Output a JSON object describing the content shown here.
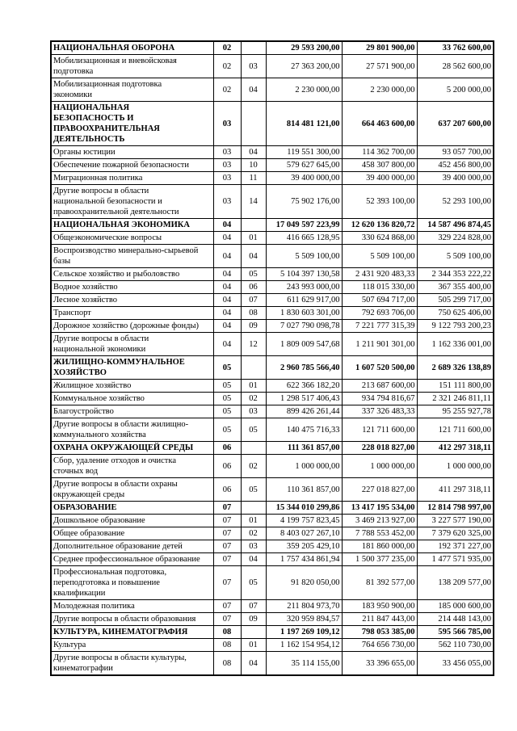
{
  "colors": {
    "page_background": "#ffffff",
    "table_border": "#000000",
    "text": "#000000"
  },
  "table": {
    "rows": [
      {
        "bold": true,
        "name": "НАЦИОНАЛЬНАЯ ОБОРОНА",
        "code1": "02",
        "code2": "",
        "amounts": [
          "29 593 200,00",
          "29 801 900,00",
          "33 762 600,00"
        ]
      },
      {
        "bold": false,
        "name": "Мобилизационная и вневойсковая\nподготовка",
        "code1": "02",
        "code2": "03",
        "amounts": [
          "27 363 200,00",
          "27 571 900,00",
          "28 562 600,00"
        ]
      },
      {
        "bold": false,
        "name": "Мобилизационная подготовка\nэкономики",
        "code1": "02",
        "code2": "04",
        "amounts": [
          "2 230 000,00",
          "2 230 000,00",
          "5 200 000,00"
        ]
      },
      {
        "bold": true,
        "name": "НАЦИОНАЛЬНАЯ\nБЕЗОПАСНОСТЬ И\nПРАВООХРАНИТЕЛЬНАЯ\nДЕЯТЕЛЬНОСТЬ",
        "code1": "03",
        "code2": "",
        "amounts": [
          "814 481 121,00",
          "664 463 600,00",
          "637 207 600,00"
        ]
      },
      {
        "bold": false,
        "name": "Органы юстиции",
        "code1": "03",
        "code2": "04",
        "amounts": [
          "119 551 300,00",
          "114 362 700,00",
          "93 057 700,00"
        ]
      },
      {
        "bold": false,
        "name": "Обеспечение пожарной безопасности",
        "code1": "03",
        "code2": "10",
        "amounts": [
          "579 627 645,00",
          "458 307 800,00",
          "452 456 800,00"
        ]
      },
      {
        "bold": false,
        "name": "Миграционная политика",
        "code1": "03",
        "code2": "11",
        "amounts": [
          "39 400 000,00",
          "39 400 000,00",
          "39 400 000,00"
        ]
      },
      {
        "bold": false,
        "name": "Другие вопросы в области\nнациональной безопасности и\nправоохранительной деятельности",
        "code1": "03",
        "code2": "14",
        "amounts": [
          "75 902 176,00",
          "52 393 100,00",
          "52 293 100,00"
        ]
      },
      {
        "bold": true,
        "name": "НАЦИОНАЛЬНАЯ ЭКОНОМИКА",
        "code1": "04",
        "code2": "",
        "amounts": [
          "17 049 597 223,99",
          "12 620 136 820,72",
          "14 587 496 874,45"
        ]
      },
      {
        "bold": false,
        "name": "Общеэкономические вопросы",
        "code1": "04",
        "code2": "01",
        "amounts": [
          "416 665 128,95",
          "330 624 868,00",
          "329 224 828,00"
        ]
      },
      {
        "bold": false,
        "name": "Воспроизводство минерально-сырьевой\nбазы",
        "code1": "04",
        "code2": "04",
        "amounts": [
          "5 509 100,00",
          "5 509 100,00",
          "5 509 100,00"
        ]
      },
      {
        "bold": false,
        "name": "Сельское хозяйство и рыболовство",
        "code1": "04",
        "code2": "05",
        "amounts": [
          "5 104 397 130,58",
          "2 431 920 483,33",
          "2 344 353 222,22"
        ]
      },
      {
        "bold": false,
        "name": "Водное хозяйство",
        "code1": "04",
        "code2": "06",
        "amounts": [
          "243 993 000,00",
          "118 015 330,00",
          "367 355 400,00"
        ]
      },
      {
        "bold": false,
        "name": "Лесное хозяйство",
        "code1": "04",
        "code2": "07",
        "amounts": [
          "611 629 917,00",
          "507 694 717,00",
          "505 299 717,00"
        ]
      },
      {
        "bold": false,
        "name": "Транспорт",
        "code1": "04",
        "code2": "08",
        "amounts": [
          "1 830 603 301,00",
          "792 693 706,00",
          "750 625 406,00"
        ]
      },
      {
        "bold": false,
        "name": "Дорожное хозяйство (дорожные фонды)",
        "code1": "04",
        "code2": "09",
        "amounts": [
          "7 027 790 098,78",
          "7 221 777 315,39",
          "9 122 793 200,23"
        ]
      },
      {
        "bold": false,
        "name": "Другие вопросы в области\nнациональной экономики",
        "code1": "04",
        "code2": "12",
        "amounts": [
          "1 809 009 547,68",
          "1 211 901 301,00",
          "1 162 336 001,00"
        ]
      },
      {
        "bold": true,
        "name": "ЖИЛИЩНО-КОММУНАЛЬНОЕ\nХОЗЯЙСТВО",
        "code1": "05",
        "code2": "",
        "amounts": [
          "2 960 785 566,40",
          "1 607 520 500,00",
          "2 689 326 138,89"
        ]
      },
      {
        "bold": false,
        "name": "Жилищное хозяйство",
        "code1": "05",
        "code2": "01",
        "amounts": [
          "622 366 182,20",
          "213 687 600,00",
          "151 111 800,00"
        ]
      },
      {
        "bold": false,
        "name": "Коммунальное хозяйство",
        "code1": "05",
        "code2": "02",
        "amounts": [
          "1 298 517 406,43",
          "934 794 816,67",
          "2 321 246 811,11"
        ]
      },
      {
        "bold": false,
        "name": "Благоустройство",
        "code1": "05",
        "code2": "03",
        "amounts": [
          "899 426 261,44",
          "337 326 483,33",
          "95 255 927,78"
        ]
      },
      {
        "bold": false,
        "name": "Другие вопросы в области жилищно-\nкоммунального хозяйства",
        "code1": "05",
        "code2": "05",
        "amounts": [
          "140 475 716,33",
          "121 711 600,00",
          "121 711 600,00"
        ]
      },
      {
        "bold": true,
        "name": "ОХРАНА ОКРУЖАЮЩЕЙ СРЕДЫ",
        "code1": "06",
        "code2": "",
        "amounts": [
          "111 361 857,00",
          "228 018 827,00",
          "412 297 318,11"
        ]
      },
      {
        "bold": false,
        "name": "Сбор, удаление отходов и очистка\nсточных вод",
        "code1": "06",
        "code2": "02",
        "amounts": [
          "1 000 000,00",
          "1 000 000,00",
          "1 000 000,00"
        ]
      },
      {
        "bold": false,
        "name": "Другие вопросы в области охраны\nокружающей среды",
        "code1": "06",
        "code2": "05",
        "amounts": [
          "110 361 857,00",
          "227 018 827,00",
          "411 297 318,11"
        ]
      },
      {
        "bold": true,
        "name": "ОБРАЗОВАНИЕ",
        "code1": "07",
        "code2": "",
        "amounts": [
          "15 344 010 299,86",
          "13 417 195 534,00",
          "12 814 798 997,00"
        ]
      },
      {
        "bold": false,
        "name": "Дошкольное образование",
        "code1": "07",
        "code2": "01",
        "amounts": [
          "4 199 757 823,45",
          "3 469 213 927,00",
          "3 227 577 190,00"
        ]
      },
      {
        "bold": false,
        "name": "Общее образование",
        "code1": "07",
        "code2": "02",
        "amounts": [
          "8 403 027 267,10",
          "7 788 553 452,00",
          "7 379 620 325,00"
        ]
      },
      {
        "bold": false,
        "name": "Дополнительное образование детей",
        "code1": "07",
        "code2": "03",
        "amounts": [
          "359 205 429,10",
          "181 860 000,00",
          "192 371 227,00"
        ]
      },
      {
        "bold": false,
        "name": "Среднее профессиональное образование",
        "code1": "07",
        "code2": "04",
        "amounts": [
          "1 757 434 861,94",
          "1 500 377 235,00",
          "1 477 571 935,00"
        ]
      },
      {
        "bold": false,
        "name": "Профессиональная подготовка,\nпереподготовка и повышение\nквалификации",
        "code1": "07",
        "code2": "05",
        "amounts": [
          "91 820 050,00",
          "81 392 577,00",
          "138 209 577,00"
        ]
      },
      {
        "bold": false,
        "name": "Молодежная политика",
        "code1": "07",
        "code2": "07",
        "amounts": [
          "211 804 973,70",
          "183 950 900,00",
          "185 000 600,00"
        ]
      },
      {
        "bold": false,
        "name": "Другие вопросы в области образования",
        "code1": "07",
        "code2": "09",
        "amounts": [
          "320 959 894,57",
          "211 847 443,00",
          "214 448 143,00"
        ]
      },
      {
        "bold": true,
        "name": "КУЛЬТУРА, КИНЕМАТОГРАФИЯ",
        "code1": "08",
        "code2": "",
        "amounts": [
          "1 197 269 109,12",
          "798 053 385,00",
          "595 566 785,00"
        ]
      },
      {
        "bold": false,
        "name": "Культура",
        "code1": "08",
        "code2": "01",
        "amounts": [
          "1 162 154 954,12",
          "764 656 730,00",
          "562 110 730,00"
        ]
      },
      {
        "bold": false,
        "name": "Другие вопросы в области культуры,\nкинематографии",
        "code1": "08",
        "code2": "04",
        "amounts": [
          "35 114 155,00",
          "33 396 655,00",
          "33 456 055,00"
        ]
      }
    ]
  }
}
